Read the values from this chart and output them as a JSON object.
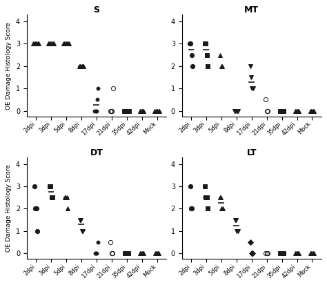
{
  "title_fontsize": 9,
  "ylabel": "OE Damage Histology Score",
  "ylim": [
    -0.25,
    4.3
  ],
  "yticks": [
    0,
    1,
    2,
    3,
    4
  ],
  "x_labels": [
    "2dpi",
    "3dpi",
    "5dpi",
    "8dpi",
    "17dpi",
    "21dpi",
    "35dpi",
    "42dpi",
    "Mock"
  ],
  "subplot_order": [
    "S",
    "MT",
    "DT",
    "LT"
  ],
  "marker_color": "#1a1a1a",
  "marker_size": 4.5,
  "median_color": "#1a1a1a",
  "median_linewidth": 1.2,
  "background_color": "#ffffff"
}
